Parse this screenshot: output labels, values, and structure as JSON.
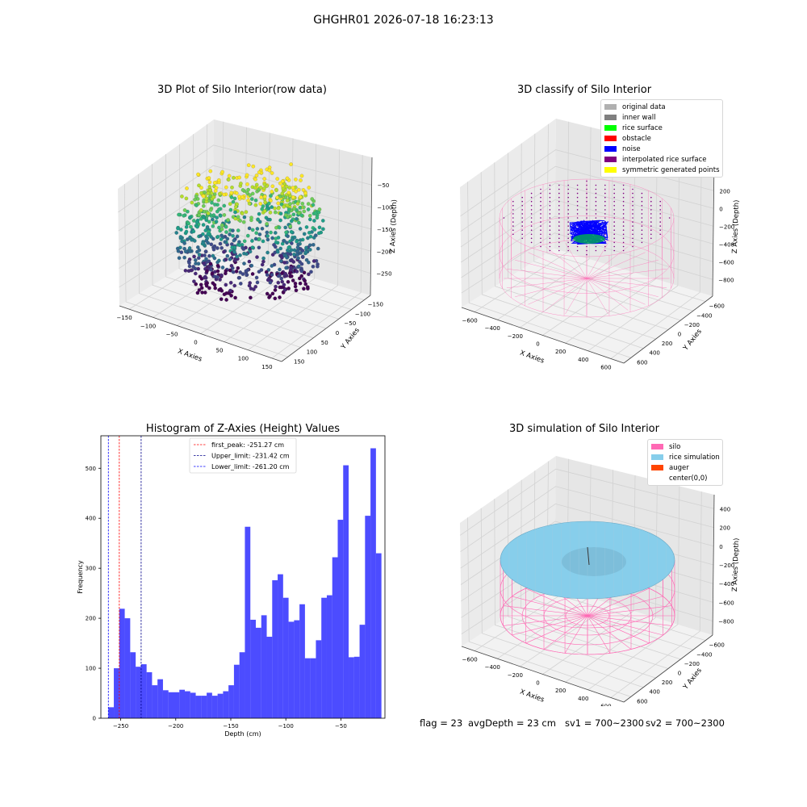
{
  "suptitle": "GHGHR01 2026-07-18 16:23:13",
  "panels": {
    "raw": {
      "title": "3D Plot of Silo Interior(row data)",
      "xlabel": "X Axies",
      "ylabel": "Y Axies",
      "zlabel": "Z Axies (Depth)",
      "xticks": [
        "−150",
        "−100",
        "−50",
        "0",
        "50",
        "100",
        "150"
      ],
      "yticks": [
        "150",
        "100",
        "50",
        "0",
        "−50",
        "−100",
        "−150"
      ],
      "zticks": [
        "−50",
        "−100",
        "−150",
        "−200",
        "−250"
      ]
    },
    "classify": {
      "title": "3D classify of Silo Interior",
      "xlabel": "X Axies",
      "ylabel": "Y Axies",
      "zlabel": "Z Axies (Depth)",
      "xticks": [
        "−600",
        "−400",
        "−200",
        "0",
        "200",
        "400",
        "600"
      ],
      "yticks": [
        "600",
        "400",
        "200",
        "0",
        "−200",
        "−400",
        "−600"
      ],
      "zticks": [
        "200",
        "0",
        "−200",
        "−400",
        "−600",
        "−800"
      ],
      "legend": [
        {
          "label": "original data",
          "color": "#b0b0b0"
        },
        {
          "label": "inner wall",
          "color": "#808080"
        },
        {
          "label": "rice surface",
          "color": "#00ff00"
        },
        {
          "label": "obstacle",
          "color": "#ff0000"
        },
        {
          "label": "noise",
          "color": "#0000ff"
        },
        {
          "label": "interpolated rice surface",
          "color": "#800080"
        },
        {
          "label": "symmetric generated points",
          "color": "#ffff00"
        }
      ]
    },
    "simulation": {
      "title": "3D simulation of Silo Interior",
      "xlabel": "X Axies",
      "ylabel": "Y Axies",
      "zlabel": "Z Axies (Depth)",
      "xticks": [
        "−600",
        "−400",
        "−200",
        "0",
        "200",
        "400",
        "600"
      ],
      "yticks": [
        "600",
        "400",
        "200",
        "0",
        "−200",
        "−400",
        "−600"
      ],
      "zticks": [
        "400",
        "200",
        "0",
        "−200",
        "−400",
        "−600",
        "−800"
      ],
      "legend": [
        {
          "label": "silo",
          "color": "#ff69b4"
        },
        {
          "label": "rice simulation",
          "color": "#87ceeb"
        },
        {
          "label": "auger",
          "color": "#ff4500"
        },
        {
          "label": "center(0,0)",
          "color": "#ffffff"
        }
      ]
    }
  },
  "chart_data": {
    "type": "bar",
    "title": "Histogram of Z-Axies (Height) Values",
    "xlabel": "Depth (cm)",
    "ylabel": "Frequency",
    "xlim": [
      -268,
      -10
    ],
    "ylim": [
      0,
      565
    ],
    "xticks": [
      -250,
      -200,
      -150,
      -100,
      -50
    ],
    "yticks": [
      0,
      100,
      200,
      300,
      400,
      500
    ],
    "bin_start": -261.2,
    "bin_width": 4.96,
    "bar_color": "#0000ff",
    "values": [
      22,
      100,
      219,
      200,
      132,
      103,
      108,
      92,
      66,
      78,
      56,
      52,
      52,
      57,
      54,
      51,
      45,
      45,
      51,
      45,
      49,
      54,
      66,
      107,
      132,
      383,
      197,
      181,
      206,
      163,
      276,
      288,
      241,
      193,
      196,
      228,
      120,
      120,
      156,
      241,
      246,
      322,
      397,
      506,
      122,
      123,
      187,
      405,
      540,
      330
    ],
    "lines": [
      {
        "label": "first_peak: -251.27 cm",
        "x": -251.27,
        "color": "#ff0000"
      },
      {
        "label": "Upper_limit: -231.42 cm",
        "x": -231.42,
        "color": "#00008b"
      },
      {
        "label": "Lower_limit: -261.20 cm",
        "x": -261.2,
        "color": "#0000ff"
      }
    ]
  },
  "footer": {
    "flag": "flag = 23",
    "avg": "avgDepth = 23 cm",
    "sv1": "sv1 = 700~2300",
    "sv2": "sv2 = 700~2300"
  }
}
